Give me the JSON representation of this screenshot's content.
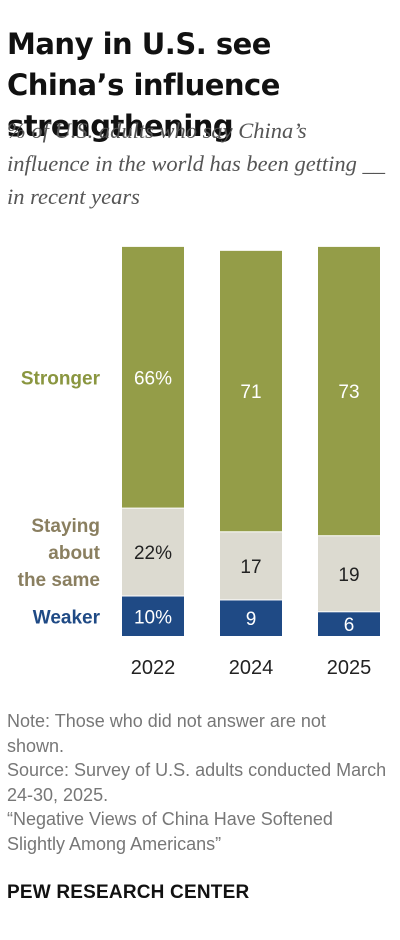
{
  "title": "Many in U.S. see China’s influence strengthening",
  "subtitle": "% of U.S. adults who say China’s influence in the world has been getting __ in recent years",
  "notes": {
    "note": "Note: Those who did not answer are not shown.",
    "source": "Source: Survey of U.S. adults conducted March 24-30, 2025.",
    "report": "“Negative Views of China Have Softened Slightly Among Americans”"
  },
  "brand": "PEW RESEARCH CENTER",
  "colors": {
    "stronger": "#949d48",
    "staying": "#dcdad0",
    "weaker": "#1f4a85",
    "stronger_label": "#8a9640",
    "staying_label": "#8a7f60",
    "weaker_label": "#1f4a85"
  },
  "chart_data": {
    "type": "bar",
    "stacked": true,
    "categories": [
      "2022",
      "2024",
      "2025"
    ],
    "series": [
      {
        "name": "Weaker",
        "values": [
          10,
          9,
          6
        ],
        "labels": [
          "10%",
          "9",
          "6"
        ],
        "color": "#1f4a85",
        "label_color": "#ffffff"
      },
      {
        "name": "Staying about the same",
        "name_lines": [
          "Staying",
          "about",
          "the same"
        ],
        "values": [
          22,
          17,
          19
        ],
        "labels": [
          "22%",
          "17",
          "19"
        ],
        "color": "#dcdad0",
        "label_color": "#222222"
      },
      {
        "name": "Stronger",
        "values": [
          66,
          71,
          73
        ],
        "labels": [
          "66%",
          "71",
          "73"
        ],
        "color": "#949d48",
        "label_color": "#ffffff"
      }
    ],
    "legend": "left"
  }
}
